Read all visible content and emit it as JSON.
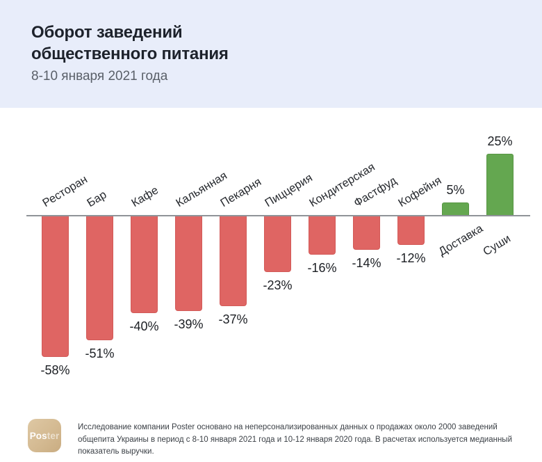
{
  "header": {
    "title_line1": "Оборот заведений",
    "title_line2": "общественного питания",
    "subtitle": "8-10 января 2021 года"
  },
  "chart_data": {
    "type": "bar",
    "title": "Оборот заведений общественного питания",
    "subtitle": "8-10 января 2021 года",
    "categories": [
      "Ресторан",
      "Бар",
      "Кафе",
      "Кальянная",
      "Пекарня",
      "Пиццерия",
      "Кондитерская",
      "Фастфуд",
      "Кофейня",
      "Доставка",
      "Суши"
    ],
    "values": [
      -58,
      -51,
      -40,
      -39,
      -37,
      -23,
      -16,
      -14,
      -12,
      5,
      25
    ],
    "value_labels": [
      "-58%",
      "-51%",
      "-40%",
      "-39%",
      "-37%",
      "-23%",
      "-16%",
      "-14%",
      "-12%",
      "5%",
      "25%"
    ],
    "unit": "%",
    "ylim": [
      -58,
      25
    ],
    "grid": false,
    "legend": false,
    "colors": {
      "negative_bar": "#df6563",
      "positive_bar": "#64a750",
      "axis_line": "#8f9398"
    }
  },
  "footer": {
    "logo_text_strong": "Pos",
    "logo_text_light": "ter",
    "note": "Исследование компании Poster основано на неперсонализированных данных о продажах около 2000 заведений общепита Украины в период с 8-10 января 2021 года и 10-12 января 2020 года. В расчетах используется медианный показатель выручки."
  }
}
